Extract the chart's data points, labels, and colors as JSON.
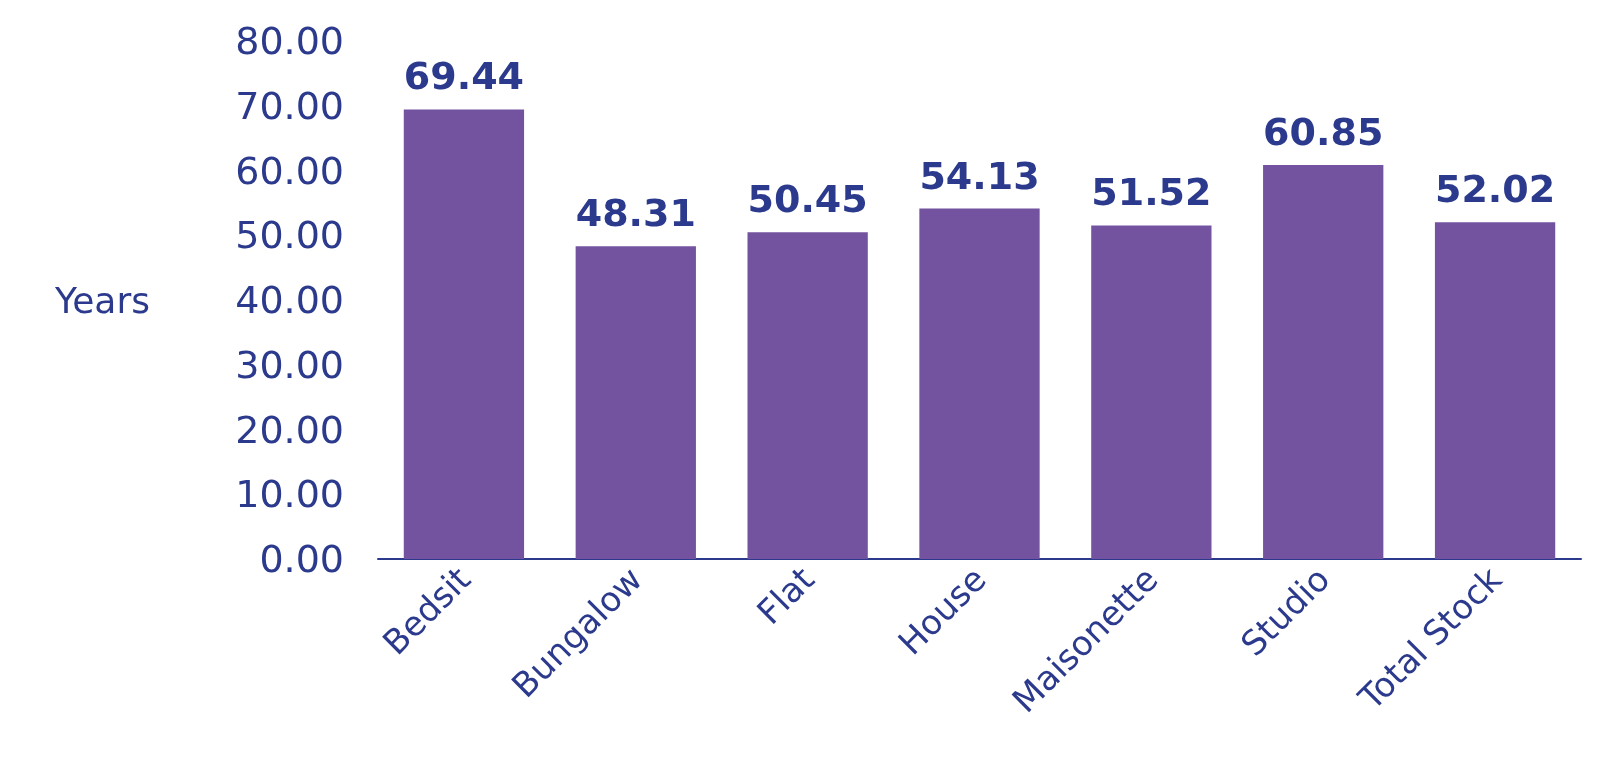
{
  "chart_data": {
    "type": "bar",
    "ylabel": "Years",
    "categories": [
      "Bedsit",
      "Bungalow",
      "Flat",
      "House",
      "Maisonette",
      "Studio",
      "Total Stock"
    ],
    "values": [
      69.44,
      48.31,
      50.45,
      54.13,
      51.52,
      60.85,
      52.02
    ],
    "color": "#7352a0",
    "data_labels": true,
    "grid": false,
    "ylim": [
      0,
      80
    ],
    "yticks": [
      {
        "value": 0,
        "label": "0.00"
      },
      {
        "value": 10,
        "label": "10.00"
      },
      {
        "value": 20,
        "label": "20.00"
      },
      {
        "value": 30,
        "label": "30.00"
      },
      {
        "value": 40,
        "label": "40.00"
      },
      {
        "value": 50,
        "label": "50.00"
      },
      {
        "value": 60,
        "label": "60.00"
      },
      {
        "value": 70,
        "label": "70.00"
      },
      {
        "value": 80,
        "label": "80.00"
      }
    ]
  }
}
